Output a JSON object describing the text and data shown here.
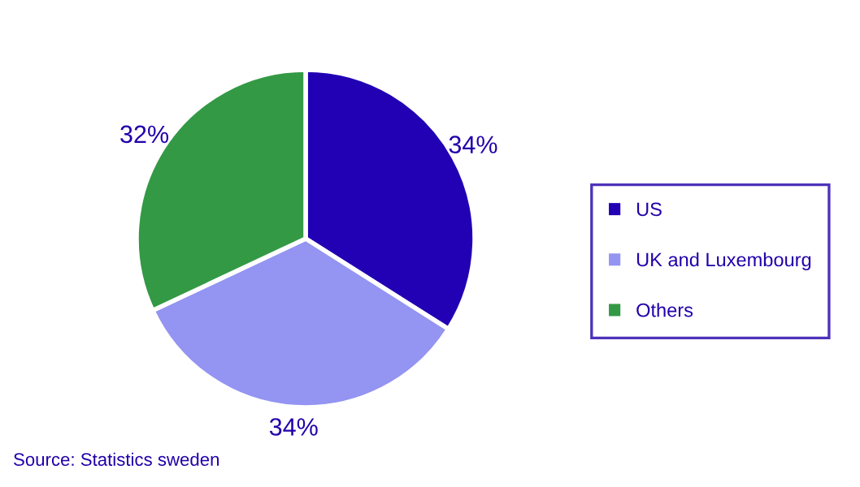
{
  "chart_data": {
    "type": "pie",
    "categories": [
      "US",
      "UK and Luxembourg",
      "Others"
    ],
    "values": [
      34,
      34,
      32
    ],
    "colors": [
      "#2200b4",
      "#9494f2",
      "#339944"
    ],
    "value_labels": [
      "34%",
      "34%",
      "32%"
    ],
    "legend": "right",
    "annotations": [
      "Source: Statistics sweden"
    ]
  }
}
